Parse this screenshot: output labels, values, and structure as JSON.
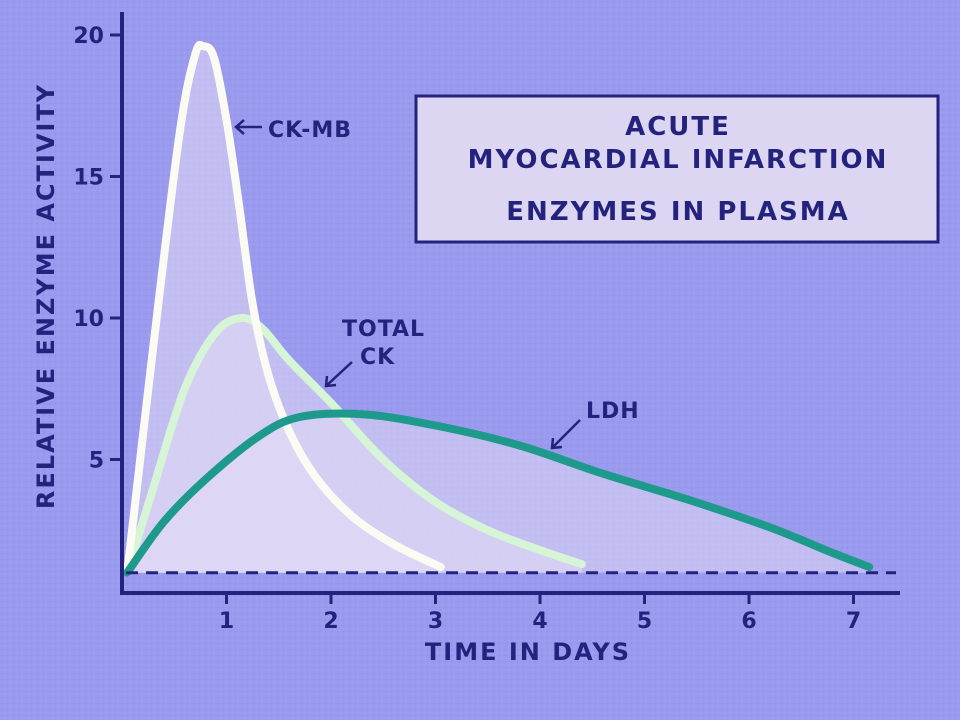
{
  "chart_data": {
    "type": "line",
    "title_lines": [
      "ACUTE",
      "MYOCARDIAL INFARCTION",
      "ENZYMES IN PLASMA"
    ],
    "xlabel": "TIME IN DAYS",
    "ylabel": "RELATIVE ENZYME ACTIVITY",
    "xlim": [
      0,
      7.5
    ],
    "ylim": [
      0,
      20.5
    ],
    "x_ticks": [
      1,
      2,
      3,
      4,
      5,
      6,
      7
    ],
    "y_ticks": [
      5,
      10,
      15,
      20
    ],
    "baseline": 1,
    "grid": false,
    "series": [
      {
        "name": "CK-MB",
        "color": "#fbfbf4",
        "points": [
          [
            0.05,
            1
          ],
          [
            0.3,
            9
          ],
          [
            0.55,
            16.5
          ],
          [
            0.7,
            19.3
          ],
          [
            0.78,
            19.6
          ],
          [
            0.88,
            19.2
          ],
          [
            1.0,
            17
          ],
          [
            1.12,
            14
          ],
          [
            1.25,
            10.5
          ],
          [
            1.4,
            8
          ],
          [
            1.6,
            6
          ],
          [
            1.85,
            4.4
          ],
          [
            2.2,
            3.0
          ],
          [
            2.6,
            2.0
          ],
          [
            3.05,
            1.2
          ]
        ]
      },
      {
        "name": "TOTAL CK",
        "color": "#d6f5d6",
        "points": [
          [
            0.05,
            1
          ],
          [
            0.3,
            4
          ],
          [
            0.6,
            7.5
          ],
          [
            0.9,
            9.5
          ],
          [
            1.15,
            10
          ],
          [
            1.35,
            9.6
          ],
          [
            1.6,
            8.5
          ],
          [
            2.0,
            7
          ],
          [
            2.5,
            5
          ],
          [
            3.0,
            3.5
          ],
          [
            3.5,
            2.5
          ],
          [
            4.0,
            1.8
          ],
          [
            4.4,
            1.3
          ]
        ]
      },
      {
        "name": "LDH",
        "color": "#1e9a8c",
        "points": [
          [
            0.05,
            1
          ],
          [
            0.4,
            2.8
          ],
          [
            0.8,
            4.3
          ],
          [
            1.3,
            5.8
          ],
          [
            1.7,
            6.5
          ],
          [
            2.3,
            6.6
          ],
          [
            3.0,
            6.2
          ],
          [
            3.8,
            5.5
          ],
          [
            4.6,
            4.5
          ],
          [
            5.4,
            3.6
          ],
          [
            6.2,
            2.6
          ],
          [
            6.8,
            1.7
          ],
          [
            7.15,
            1.2
          ]
        ]
      }
    ]
  }
}
